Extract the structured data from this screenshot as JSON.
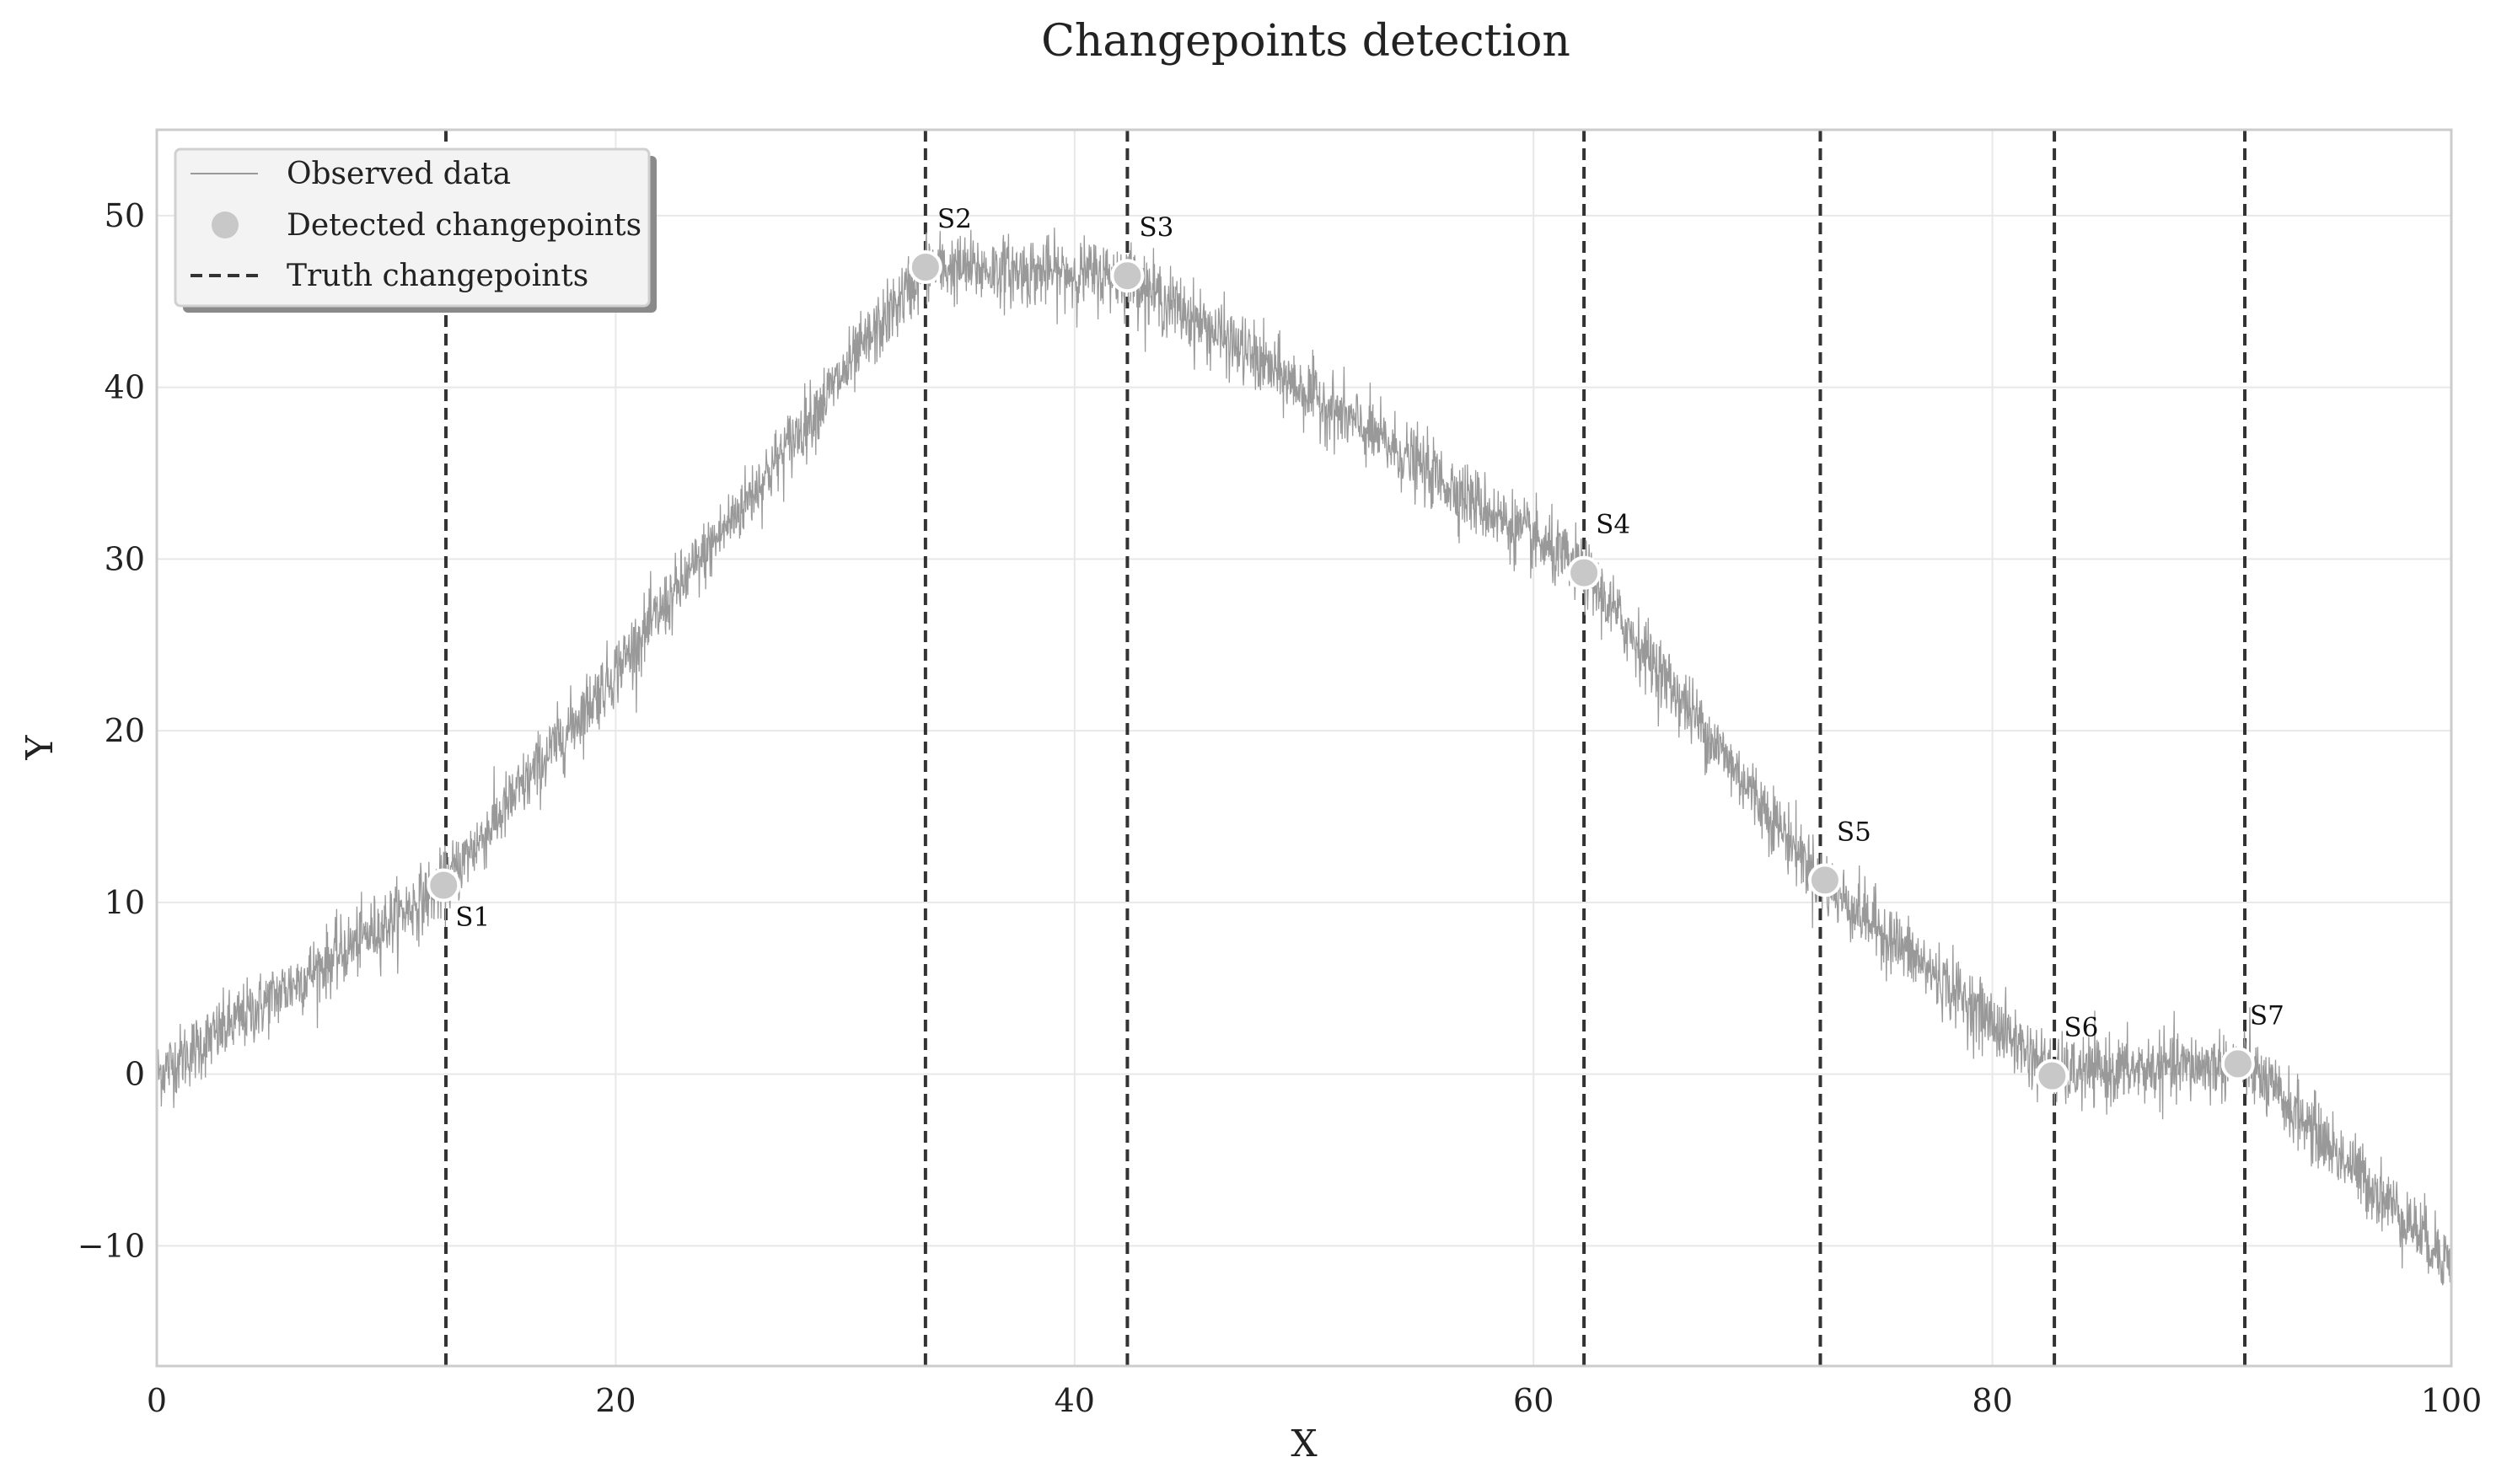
{
  "chart_data": {
    "type": "line",
    "title": "Changepoints detection",
    "xlabel": "X",
    "ylabel": "Y",
    "xlim": [
      0,
      100
    ],
    "ylim": [
      -17,
      55
    ],
    "x_ticks": [
      0,
      20,
      40,
      60,
      80,
      100
    ],
    "y_ticks": [
      -10,
      0,
      10,
      20,
      30,
      40,
      50
    ],
    "x_tick_labels": [
      "0",
      "20",
      "40",
      "60",
      "80",
      "100"
    ],
    "y_tick_labels": [
      "−10",
      "0",
      "10",
      "20",
      "30",
      "40",
      "50"
    ],
    "grid": true,
    "legend": {
      "placement": "top-left",
      "entries": [
        "Observed data",
        "Detected changepoints",
        "Truth changepoints"
      ]
    },
    "observed_trend": {
      "x": [
        0,
        12.5,
        20,
        33.5,
        42.3,
        62.2,
        72.5,
        82.7,
        91,
        100
      ],
      "y": [
        0,
        11,
        23.5,
        47,
        46.5,
        29.2,
        11.3,
        0,
        0.6,
        -11
      ]
    },
    "detected_changepoints": [
      {
        "label": "S1",
        "x": 12.5,
        "y": 11.0
      },
      {
        "label": "S2",
        "x": 33.5,
        "y": 47.0
      },
      {
        "label": "S3",
        "x": 42.3,
        "y": 46.5
      },
      {
        "label": "S4",
        "x": 62.2,
        "y": 29.2
      },
      {
        "label": "S5",
        "x": 72.7,
        "y": 11.3
      },
      {
        "label": "S6",
        "x": 82.6,
        "y": -0.1
      },
      {
        "label": "S7",
        "x": 90.7,
        "y": 0.6
      }
    ],
    "truth_changepoints": [
      12.6,
      33.5,
      42.3,
      62.2,
      72.5,
      82.7,
      91.0
    ],
    "colors": {
      "observed": "#999999",
      "detected_fill": "#c8c8c8",
      "detected_edge": "#ffffff",
      "truth": "#333333",
      "grid": "#e8e8e8",
      "frame": "#cccccc"
    }
  }
}
